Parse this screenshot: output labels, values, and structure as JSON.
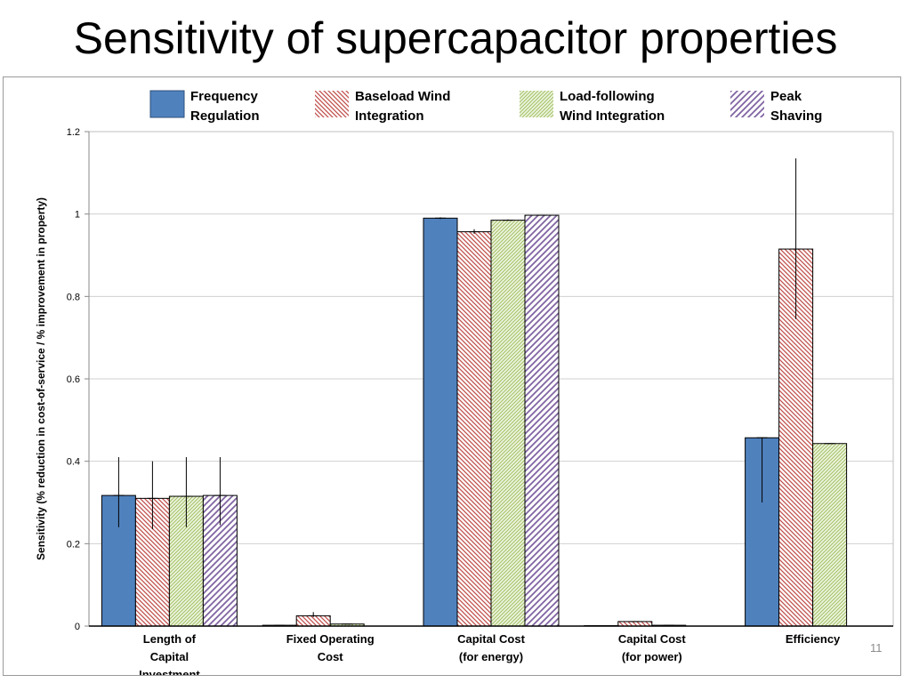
{
  "slide": {
    "title": "Sensitivity of supercapacitor properties",
    "number": "11"
  },
  "colors": {
    "frequency_regulation": "#4f81bd",
    "baseload_wind": "#c0504d",
    "load_following_wind": "#9bbb59",
    "peak_shaving": "#8064a2"
  },
  "chart_data": {
    "type": "bar",
    "title": "",
    "xlabel": "",
    "ylabel": "Sensitivity (% reduction in cost-of-service / % improvement in property)",
    "ylim": [
      0,
      1.2
    ],
    "yticks": [
      "0",
      "0.2",
      "0.4",
      "0.6",
      "0.8",
      "1",
      "1.2"
    ],
    "grid": true,
    "legend_position": "top",
    "categories": [
      [
        "Length of",
        "Capital",
        "Investment"
      ],
      [
        "Fixed Operating",
        "Cost"
      ],
      [
        "Capital Cost",
        "(for energy)"
      ],
      [
        "Capital Cost",
        "(for power)"
      ],
      [
        "Efficiency"
      ]
    ],
    "series": [
      {
        "name": [
          "Frequency",
          "Regulation"
        ],
        "pattern": "solid",
        "values": [
          0.317,
          0.002,
          0.99,
          0.0,
          0.457
        ],
        "error_low": [
          0.24,
          0.001,
          0.988,
          null,
          0.3
        ],
        "error_high": [
          0.41,
          0.003,
          0.992,
          null,
          0.458
        ]
      },
      {
        "name": [
          "Baseload Wind",
          "Integration"
        ],
        "pattern": "diag-down",
        "values": [
          0.31,
          0.025,
          0.957,
          0.011,
          0.915
        ],
        "error_low": [
          0.235,
          0.022,
          0.952,
          0.01,
          0.745
        ],
        "error_high": [
          0.4,
          0.034,
          0.963,
          0.012,
          1.135
        ]
      },
      {
        "name": [
          "Load-following",
          "Wind Integration"
        ],
        "pattern": "diag-fine",
        "values": [
          0.315,
          0.005,
          0.985,
          0.002,
          0.443
        ],
        "error_low": [
          0.24,
          0.004,
          0.984,
          0.001,
          0.442
        ],
        "error_high": [
          0.41,
          0.006,
          0.987,
          0.003,
          0.444
        ]
      },
      {
        "name": [
          "Peak",
          "Shaving"
        ],
        "pattern": "diag-up",
        "values": [
          0.317,
          null,
          0.997,
          null,
          null
        ],
        "error_low": [
          0.245,
          null,
          0.996,
          null,
          null
        ],
        "error_high": [
          0.41,
          null,
          0.998,
          null,
          null
        ]
      }
    ]
  }
}
